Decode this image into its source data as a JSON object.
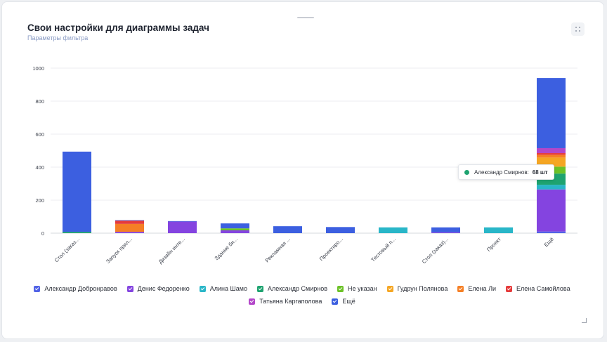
{
  "header": {
    "title": "Свои настройки для диаграммы задач",
    "subtitle": "Параметры фильтра"
  },
  "chart_data": {
    "type": "bar",
    "stacked": true,
    "ylim": [
      0,
      1000
    ],
    "yticks": [
      0,
      200,
      400,
      600,
      800,
      1000
    ],
    "grid": true,
    "legend_position": "bottom",
    "categories": [
      "Стол (заказ...",
      "Запуск прил...",
      "Дизайн инте...",
      "Здание би...",
      "Рекламная ...",
      "Проектиро...",
      "Тестовый п...",
      "Стол (заказ)...",
      "Проект",
      "Ещё"
    ],
    "series": [
      {
        "name": "Александр Добронравов",
        "color": "#5162e6",
        "values": [
          0,
          0,
          0,
          0,
          0,
          0,
          0,
          0,
          0,
          10
        ]
      },
      {
        "name": "Денис Федоренко",
        "color": "#8444e0",
        "values": [
          0,
          8,
          70,
          17,
          0,
          0,
          0,
          5,
          0,
          255
        ]
      },
      {
        "name": "Алина Шамо",
        "color": "#29b6c8",
        "values": [
          0,
          0,
          0,
          0,
          0,
          0,
          35,
          0,
          35,
          28
        ]
      },
      {
        "name": "Александр Смирнов",
        "color": "#1ea370",
        "values": [
          8,
          0,
          0,
          0,
          0,
          0,
          0,
          0,
          0,
          68
        ]
      },
      {
        "name": "Не указан",
        "color": "#6cc227",
        "values": [
          0,
          0,
          0,
          12,
          0,
          0,
          0,
          0,
          0,
          42
        ]
      },
      {
        "name": "Гудрун Полянова",
        "color": "#f5a623",
        "values": [
          0,
          0,
          0,
          0,
          0,
          0,
          0,
          0,
          0,
          55
        ]
      },
      {
        "name": "Елена Ли",
        "color": "#f57f25",
        "values": [
          0,
          48,
          0,
          0,
          0,
          0,
          0,
          0,
          0,
          17
        ]
      },
      {
        "name": "Елена Самойлова",
        "color": "#e53b3b",
        "values": [
          0,
          20,
          0,
          0,
          0,
          0,
          0,
          0,
          0,
          10
        ]
      },
      {
        "name": "Татьяна Каргаполова",
        "color": "#b347c9",
        "values": [
          0,
          0,
          0,
          0,
          0,
          0,
          0,
          0,
          0,
          30
        ]
      },
      {
        "name": "Ещё",
        "color": "#3c5fe0",
        "values": [
          486,
          3,
          3,
          30,
          42,
          37,
          0,
          30,
          0,
          425
        ]
      }
    ]
  },
  "tooltip": {
    "name": "Александр Смирнов",
    "value": "68 шт",
    "color": "#1ea370"
  }
}
